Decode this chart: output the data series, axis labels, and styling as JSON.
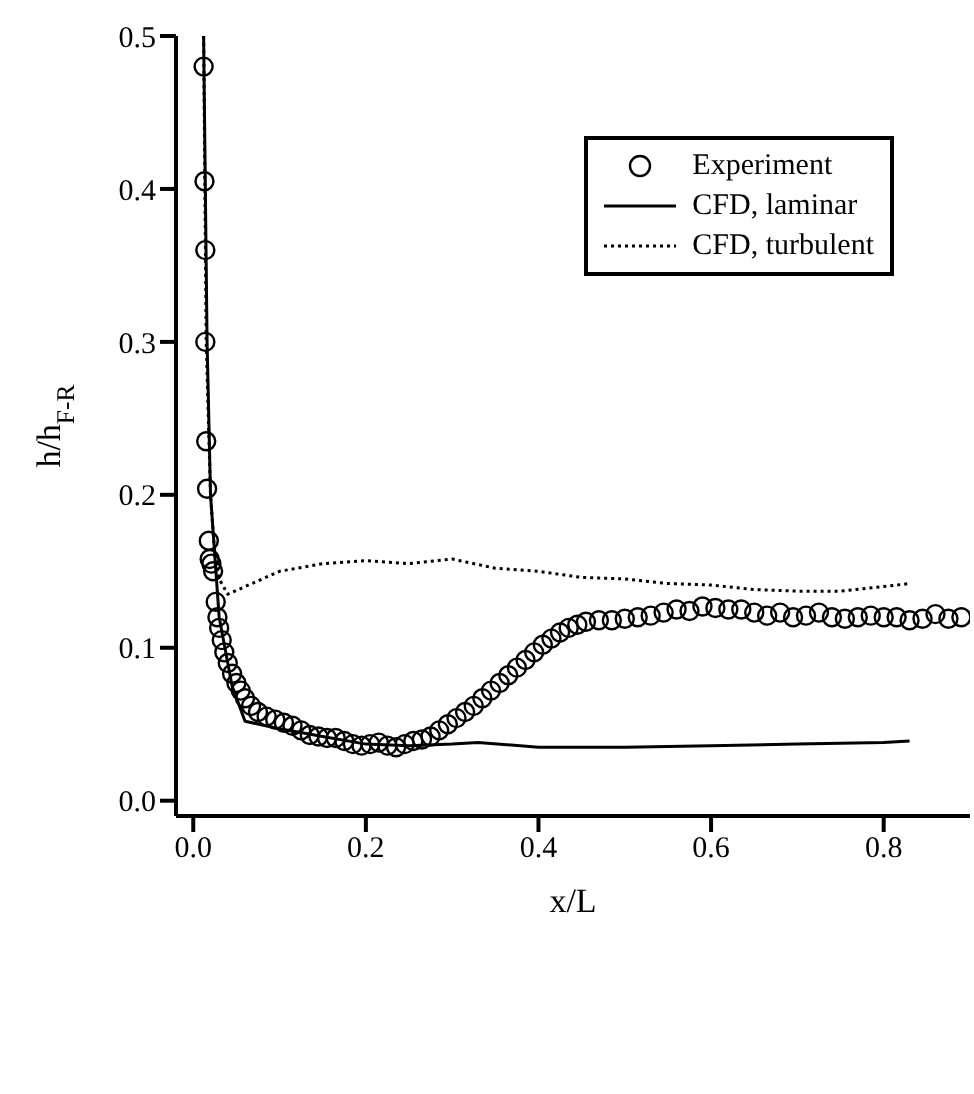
{
  "chart_data": {
    "type": "line",
    "xlabel": "x/L",
    "ylabel": "h/h$_{F-R}$",
    "xlim": [
      -0.02,
      0.9
    ],
    "ylim": [
      -0.01,
      0.5
    ],
    "xticks": [
      {
        "value": 0,
        "label": "0.0"
      },
      0.2,
      0.4,
      0.6,
      0.8
    ],
    "yticks": [
      {
        "value": 0,
        "label": "0.0"
      },
      0.1,
      0.2,
      0.3,
      0.4,
      0.5
    ],
    "grid": false,
    "legend": "top right",
    "series": [
      {
        "name": "Experiment",
        "type": "scatter",
        "marker": "circle",
        "color": "#000000",
        "x": [
          0.012,
          0.013,
          0.014,
          0.014,
          0.015,
          0.016,
          0.018,
          0.019,
          0.021,
          0.023,
          0.026,
          0.028,
          0.03,
          0.033,
          0.036,
          0.04,
          0.045,
          0.05,
          0.055,
          0.06,
          0.067,
          0.075,
          0.085,
          0.095,
          0.105,
          0.115,
          0.125,
          0.135,
          0.145,
          0.155,
          0.165,
          0.175,
          0.185,
          0.195,
          0.205,
          0.215,
          0.225,
          0.235,
          0.245,
          0.255,
          0.265,
          0.275,
          0.285,
          0.295,
          0.305,
          0.315,
          0.325,
          0.335,
          0.345,
          0.355,
          0.365,
          0.375,
          0.385,
          0.395,
          0.405,
          0.415,
          0.425,
          0.435,
          0.445,
          0.455,
          0.47,
          0.485,
          0.5,
          0.515,
          0.53,
          0.545,
          0.56,
          0.575,
          0.59,
          0.605,
          0.62,
          0.635,
          0.65,
          0.665,
          0.68,
          0.695,
          0.71,
          0.725,
          0.74,
          0.755,
          0.77,
          0.785,
          0.8,
          0.815,
          0.83,
          0.845,
          0.86,
          0.875,
          0.89
        ],
        "values": [
          0.48,
          0.405,
          0.36,
          0.3,
          0.235,
          0.204,
          0.17,
          0.158,
          0.155,
          0.15,
          0.13,
          0.12,
          0.113,
          0.105,
          0.097,
          0.09,
          0.083,
          0.077,
          0.072,
          0.067,
          0.062,
          0.058,
          0.055,
          0.053,
          0.051,
          0.049,
          0.046,
          0.043,
          0.042,
          0.041,
          0.041,
          0.039,
          0.037,
          0.036,
          0.037,
          0.038,
          0.036,
          0.035,
          0.037,
          0.039,
          0.04,
          0.042,
          0.046,
          0.05,
          0.054,
          0.058,
          0.062,
          0.067,
          0.072,
          0.077,
          0.082,
          0.087,
          0.092,
          0.097,
          0.102,
          0.106,
          0.11,
          0.113,
          0.115,
          0.117,
          0.118,
          0.118,
          0.119,
          0.12,
          0.121,
          0.123,
          0.125,
          0.124,
          0.127,
          0.126,
          0.125,
          0.125,
          0.123,
          0.121,
          0.123,
          0.12,
          0.121,
          0.123,
          0.12,
          0.119,
          0.12,
          0.121,
          0.12,
          0.12,
          0.118,
          0.119,
          0.122,
          0.119,
          0.12
        ]
      },
      {
        "name": "CFD, laminar",
        "line_style": "solid",
        "marker": "none",
        "color": "#000000",
        "x": [
          0.012,
          0.016,
          0.02,
          0.03,
          0.045,
          0.06,
          0.1,
          0.15,
          0.2,
          0.25,
          0.3,
          0.33,
          0.4,
          0.5,
          0.6,
          0.7,
          0.8,
          0.83
        ],
        "values": [
          0.5,
          0.3,
          0.2,
          0.12,
          0.075,
          0.052,
          0.047,
          0.042,
          0.037,
          0.036,
          0.037,
          0.038,
          0.035,
          0.035,
          0.036,
          0.037,
          0.038,
          0.039
        ]
      },
      {
        "name": "CFD, turbulent",
        "line_style": "dotted",
        "marker": "none",
        "color": "#000000",
        "x": [
          0.012,
          0.015,
          0.02,
          0.025,
          0.03,
          0.04,
          0.06,
          0.1,
          0.15,
          0.2,
          0.25,
          0.3,
          0.35,
          0.4,
          0.45,
          0.5,
          0.55,
          0.6,
          0.65,
          0.7,
          0.75,
          0.8,
          0.83
        ],
        "values": [
          0.5,
          0.3,
          0.2,
          0.16,
          0.145,
          0.135,
          0.14,
          0.15,
          0.155,
          0.157,
          0.155,
          0.158,
          0.152,
          0.15,
          0.146,
          0.145,
          0.142,
          0.141,
          0.138,
          0.137,
          0.137,
          0.14,
          0.142
        ]
      }
    ]
  }
}
